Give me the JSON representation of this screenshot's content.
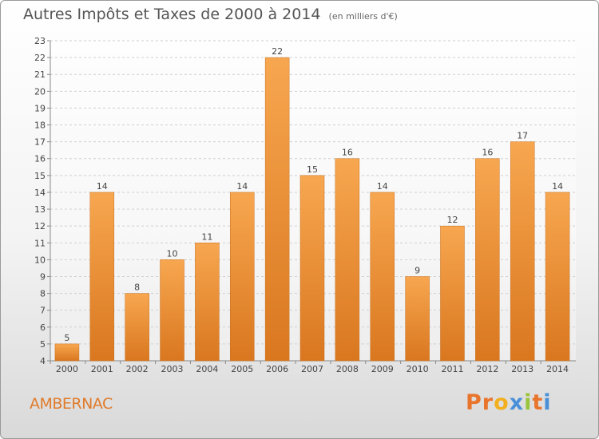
{
  "chart_data": {
    "type": "bar",
    "title": "Autres Impôts et Taxes de 2000 à 2014",
    "unit_label": "(en milliers d'€)",
    "categories": [
      "2000",
      "2001",
      "2002",
      "2003",
      "2004",
      "2005",
      "2006",
      "2007",
      "2008",
      "2009",
      "2010",
      "2011",
      "2012",
      "2013",
      "2014"
    ],
    "values": [
      5,
      14,
      8,
      10,
      11,
      14,
      22,
      15,
      16,
      14,
      9,
      12,
      16,
      17,
      14
    ],
    "ylim": [
      4,
      23
    ],
    "yticks": [
      4,
      5,
      6,
      7,
      8,
      9,
      10,
      11,
      12,
      13,
      14,
      15,
      16,
      17,
      18,
      19,
      20,
      21,
      22,
      23
    ],
    "grid": true,
    "bar_color": "#f29a3c",
    "xlabel": "",
    "ylabel": ""
  },
  "commune": "AMBERNAC",
  "logo": {
    "letters": [
      "P",
      "r",
      "o",
      "x",
      "i",
      "t",
      "i"
    ],
    "colors": [
      "#e9742b",
      "#e9742b",
      "#f2b01e",
      "#4a90d9",
      "#9bc43d",
      "#e9742b",
      "#4a90d9"
    ]
  }
}
